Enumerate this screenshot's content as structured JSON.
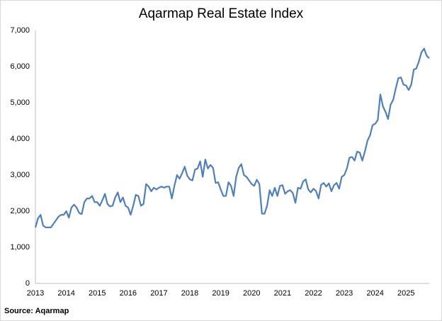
{
  "chart_data": {
    "type": "line",
    "title": "Aqarmap Real Estate Index",
    "source": "Source: Aqarmap",
    "categories": [
      "2013",
      null,
      null,
      null,
      null,
      null,
      null,
      null,
      null,
      null,
      null,
      null,
      "2014",
      null,
      null,
      null,
      null,
      null,
      null,
      null,
      null,
      null,
      null,
      null,
      "2015",
      null,
      null,
      null,
      null,
      null,
      null,
      null,
      null,
      null,
      null,
      null,
      "2016",
      null,
      null,
      null,
      null,
      null,
      null,
      null,
      null,
      null,
      null,
      null,
      "2017",
      null,
      null,
      null,
      null,
      null,
      null,
      null,
      null,
      null,
      null,
      null,
      "2018",
      null,
      null,
      null,
      null,
      null,
      null,
      null,
      null,
      null,
      null,
      null,
      "2019",
      null,
      null,
      null,
      null,
      null,
      null,
      null,
      null,
      null,
      null,
      null,
      "2020",
      null,
      null,
      null,
      null,
      null,
      null,
      null,
      null,
      null,
      null,
      null,
      "2021",
      null,
      null,
      null,
      null,
      null,
      null,
      null,
      null,
      null,
      null,
      null,
      "2022",
      null,
      null,
      null,
      null,
      null,
      null,
      null,
      null,
      null,
      null,
      null,
      "2023",
      null,
      null,
      null,
      null,
      null,
      null,
      null,
      null,
      null,
      null,
      null,
      "2024",
      null,
      null,
      null,
      null,
      null,
      null,
      null,
      null,
      null,
      null,
      null,
      "2025",
      null,
      null,
      null,
      null,
      null,
      null,
      null,
      null,
      null
    ],
    "series": [
      {
        "color": "#4f7fbd",
        "values": [
          1550,
          1800,
          1900,
          1600,
          1550,
          1550,
          1550,
          1650,
          1750,
          1850,
          1900,
          1900,
          2000,
          1820,
          2100,
          2180,
          2100,
          1950,
          1920,
          2250,
          2350,
          2350,
          2420,
          2250,
          2250,
          2150,
          2300,
          2480,
          2200,
          2130,
          2150,
          2380,
          2520,
          2250,
          2380,
          2150,
          2100,
          1900,
          2150,
          2450,
          2420,
          2150,
          2200,
          2750,
          2680,
          2550,
          2650,
          2600,
          2650,
          2680,
          2650,
          2680,
          2680,
          2350,
          2700,
          3000,
          2900,
          3050,
          3230,
          2980,
          2880,
          2850,
          3150,
          3180,
          3380,
          2950,
          3430,
          3180,
          3280,
          3200,
          2780,
          2800,
          2600,
          2420,
          2420,
          2800,
          2700,
          2420,
          2950,
          3200,
          3300,
          3000,
          2950,
          2850,
          2750,
          2700,
          2870,
          2750,
          1930,
          1930,
          2150,
          2580,
          2420,
          2650,
          2420,
          2700,
          2720,
          2480,
          2550,
          2580,
          2500,
          2230,
          2650,
          2620,
          2820,
          2880,
          2600,
          2520,
          2620,
          2560,
          2350,
          2730,
          2780,
          2680,
          2770,
          2550,
          2720,
          2780,
          2620,
          2950,
          3000,
          3180,
          3480,
          3500,
          3400,
          3650,
          3620,
          3400,
          3650,
          3950,
          4100,
          4380,
          4420,
          4520,
          5230,
          4900,
          4750,
          4550,
          4950,
          5080,
          5400,
          5680,
          5700,
          5500,
          5480,
          5350,
          5500,
          5920,
          5950,
          6150,
          6400,
          6500,
          6300,
          6230
        ]
      }
    ],
    "ylim": [
      0,
      7000
    ],
    "yticks": [
      0,
      {
        "value": 1000,
        "label": "1,000"
      },
      {
        "value": 2000,
        "label": "2,000"
      },
      {
        "value": 3000,
        "label": "3,000"
      },
      {
        "value": 4000,
        "label": "4,000"
      },
      {
        "value": 5000,
        "label": "5,000"
      },
      {
        "value": 6000,
        "label": "6,000"
      },
      {
        "value": 7000,
        "label": "7,000"
      }
    ],
    "grid": false
  }
}
